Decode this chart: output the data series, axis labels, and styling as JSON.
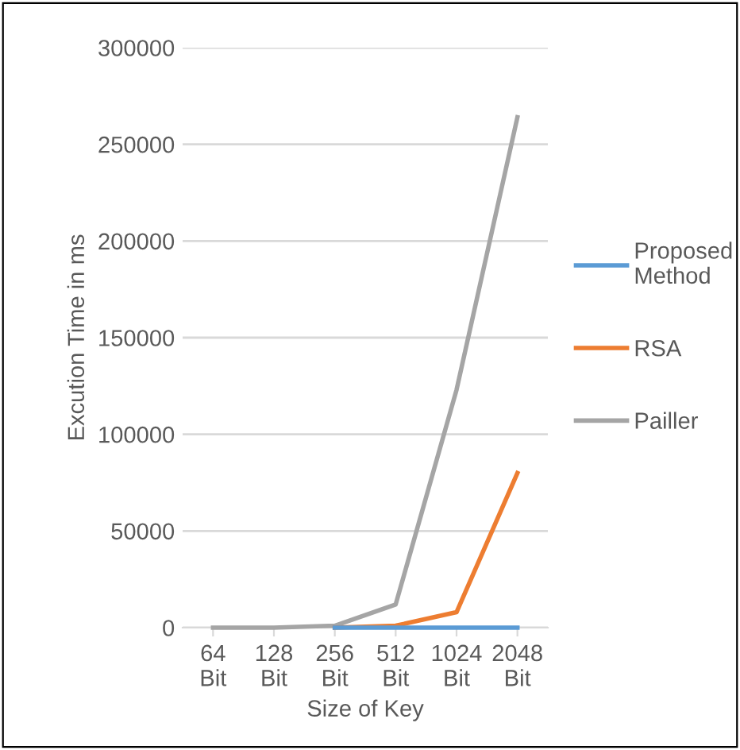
{
  "chart_data": {
    "type": "line",
    "xlabel": "Size of Key",
    "ylabel": "Excution Time in ms",
    "categories": [
      "64\nBit",
      "128\nBit",
      "256\nBit",
      "512\nBit",
      "1024\nBit",
      "2048\nBit"
    ],
    "series": [
      {
        "name": "Proposed\nMethod",
        "color": "#5b9bd5",
        "values": [
          null,
          null,
          0,
          0,
          0,
          0
        ]
      },
      {
        "name": "RSA",
        "color": "#ed7d31",
        "values": [
          null,
          null,
          0,
          1000,
          8000,
          80000
        ]
      },
      {
        "name": "Pailler",
        "color": "#a5a5a5",
        "values": [
          0,
          0,
          1000,
          12000,
          123000,
          264000
        ]
      }
    ],
    "ylim": [
      0,
      300000
    ],
    "yticks": [
      0,
      50000,
      100000,
      150000,
      200000,
      250000,
      300000
    ],
    "grid": "y",
    "legend": "right",
    "marker": "none",
    "line_style": "solid"
  }
}
